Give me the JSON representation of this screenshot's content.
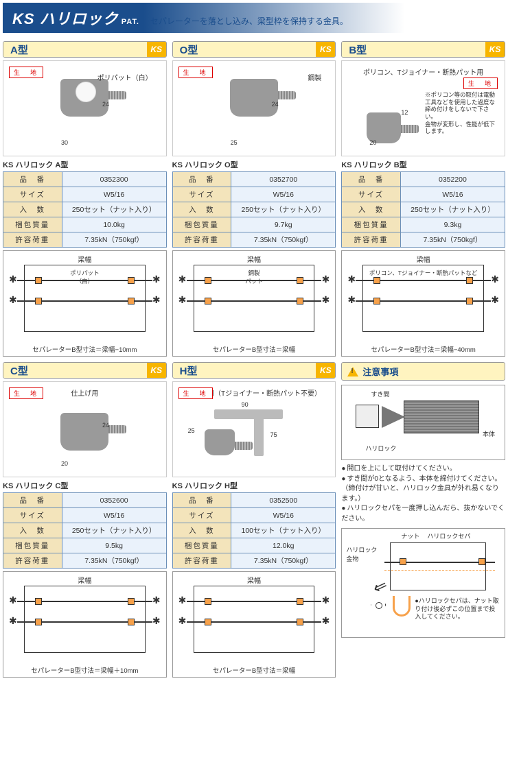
{
  "header": {
    "title": "KS ハリロック",
    "pat": "PAT.",
    "subtitle": "セパレーターを落とし込み、梁型枠を保持する金具。"
  },
  "products": [
    {
      "type_label": "A型",
      "photo_top": "",
      "photo_label": "ポリパット（白）",
      "dim_w": "30",
      "dim_h": "24",
      "spec_title": "KS ハリロック A型",
      "specs": {
        "品　番": "0352300",
        "サイズ": "W5/16",
        "入　数": "250セット（ナット入り）",
        "梱包質量": "10.0kg",
        "許容荷重": "7.35kN（750kgf）"
      },
      "diag_inner": "ポリパット\n（白）",
      "diag_caption": "セパレーターB型寸法＝梁幅−10mm"
    },
    {
      "type_label": "O型",
      "photo_top": "",
      "photo_label": "鋼製",
      "dim_w": "25",
      "dim_h": "24",
      "spec_title": "KS ハリロック O型",
      "specs": {
        "品　番": "0352700",
        "サイズ": "W5/16",
        "入　数": "250セット（ナット入り）",
        "梱包質量": "9.7kg",
        "許容荷重": "7.35kN（750kgf）"
      },
      "diag_inner": "鋼製\nパット",
      "diag_caption": "セパレーターB型寸法＝梁幅"
    },
    {
      "type_label": "B型",
      "photo_top": "ポリコン、Tジョイナー・断熱パット用",
      "photo_label": "",
      "photo_note": "※ポリコン等の取付は電動工具などを使用した過度な締め付けをしないで下さい。\n金物が変形し、性能が低下します。",
      "dim_w": "20",
      "dim_h": "12",
      "spec_title": "KS ハリロック B型",
      "specs": {
        "品　番": "0352200",
        "サイズ": "W5/16",
        "入　数": "250セット（ナット入り）",
        "梱包質量": "9.3kg",
        "許容荷重": "7.35kN（750kgf）"
      },
      "diag_inner": "ポリコン、Tジョイナー・断熱パットなど",
      "diag_caption": "セパレーターB型寸法＝梁幅−40mm"
    },
    {
      "type_label": "C型",
      "photo_top": "仕上げ用",
      "photo_label": "",
      "dim_w": "20",
      "dim_h": "24",
      "spec_title": "KS ハリロック C型",
      "specs": {
        "品　番": "0352600",
        "サイズ": "W5/16",
        "入　数": "250セット（ナット入り）",
        "梱包質量": "9.5kg",
        "許容荷重": "7.35kN（750kgf）"
      },
      "diag_inner": "",
      "diag_caption": "セパレーターB型寸法＝梁幅＋10mm"
    },
    {
      "type_label": "H型",
      "photo_top": "断熱材用（Tジョイナー・断熱パット不要）",
      "photo_label": "",
      "dim_w": "25",
      "dim_h": "75",
      "dim_plate": "90",
      "spec_title": "KS ハリロック H型",
      "specs": {
        "品　番": "0352500",
        "サイズ": "W5/16",
        "入　数": "100セット（ナット入り）",
        "梱包質量": "12.0kg",
        "許容荷重": "7.35kN（750kgf）"
      },
      "diag_inner": "",
      "diag_caption": "セパレーターB型寸法＝梁幅"
    }
  ],
  "caution": {
    "title": "注意事項",
    "diag1": {
      "gap": "すき間",
      "body": "本体",
      "lock": "ハリロック"
    },
    "bullets": [
      "開口を上にして取付けてください。",
      "すき間が0となるよう、本体を締付けてください。（締付けが甘いと、ハリロック金具が外れ易くなります。）",
      "ハリロックセパを一度押し込んだら、抜かないでください。"
    ],
    "diag2": {
      "nut": "ナット",
      "sepa": "ハリロックセパ",
      "fitting": "ハリロック\n金物",
      "note": "●ハリロックセパは、ナット取り付け後必ずこの位置まで投入してください。"
    }
  },
  "diag_common": {
    "beam": "梁幅"
  }
}
